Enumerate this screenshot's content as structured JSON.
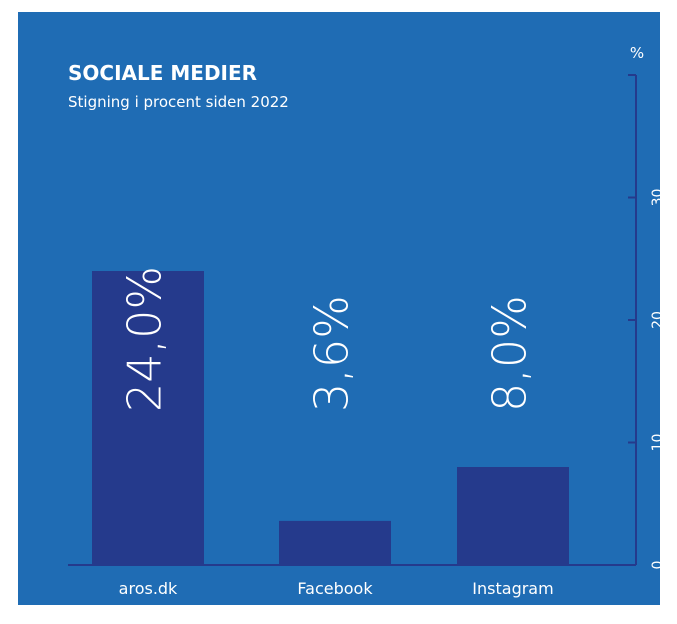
{
  "chart_data": {
    "type": "bar",
    "title": "SOCIALE MEDIER",
    "subtitle": "Stigning i procent siden 2022",
    "y_axis_label": "%",
    "categories": [
      "aros.dk",
      "Facebook",
      "Instagram"
    ],
    "values": [
      24.0,
      3.6,
      8.0
    ],
    "value_labels": [
      "24,0%",
      "3,6%",
      "8,0%"
    ],
    "color": "#253a8c",
    "background": "#1f6cb4",
    "ylim": [
      0,
      40
    ],
    "yticks": [
      0,
      10,
      20,
      30
    ]
  }
}
